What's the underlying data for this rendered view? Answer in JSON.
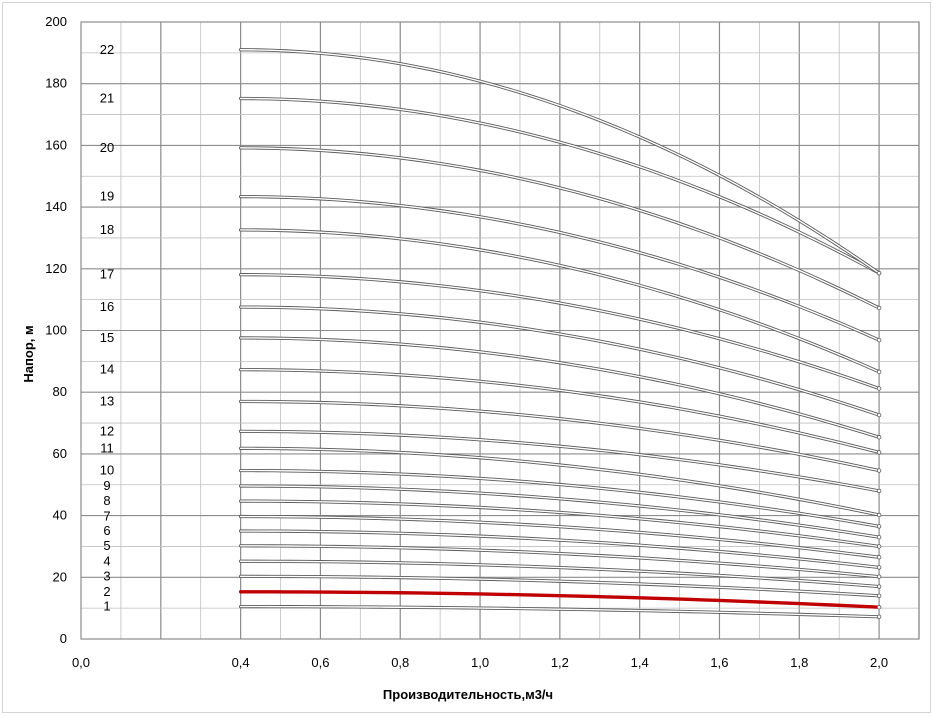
{
  "chart_data": {
    "type": "line",
    "title": "",
    "xlabel": "Производительность,м3/ч",
    "ylabel": "Напор, м",
    "xlim": [
      0,
      2.1
    ],
    "ylim": [
      0,
      200
    ],
    "grid": true,
    "legend": "none",
    "x_ticks": [
      "0,0",
      "0,4",
      "0,6",
      "0,8",
      "1,0",
      "1,2",
      "1,4",
      "1,6",
      "1,8",
      "2,0"
    ],
    "x_tick_values": [
      0.0,
      0.4,
      0.6,
      0.8,
      1.0,
      1.2,
      1.4,
      1.6,
      1.8,
      2.0
    ],
    "y_ticks": [
      "0",
      "20",
      "40",
      "60",
      "80",
      "100",
      "120",
      "140",
      "160",
      "180",
      "200"
    ],
    "y_tick_values": [
      0,
      20,
      40,
      60,
      80,
      100,
      120,
      140,
      160,
      180,
      200
    ],
    "x": [
      0.4,
      2.0
    ],
    "series": [
      {
        "name": "1",
        "values": [
          10.5,
          7.2
        ]
      },
      {
        "name": "2",
        "values": [
          15.3,
          10.3
        ],
        "highlight": true
      },
      {
        "name": "3",
        "values": [
          20.3,
          14.0
        ]
      },
      {
        "name": "4",
        "values": [
          25.2,
          17.0
        ]
      },
      {
        "name": "5",
        "values": [
          30.2,
          20.2
        ]
      },
      {
        "name": "6",
        "values": [
          35.0,
          23.2
        ]
      },
      {
        "name": "7",
        "values": [
          39.7,
          26.5
        ]
      },
      {
        "name": "8",
        "values": [
          44.7,
          30.0
        ]
      },
      {
        "name": "9",
        "values": [
          49.6,
          33.0
        ]
      },
      {
        "name": "10",
        "values": [
          54.6,
          36.5
        ]
      },
      {
        "name": "11",
        "values": [
          61.8,
          40.2
        ]
      },
      {
        "name": "12",
        "values": [
          67.3,
          48.0
        ]
      },
      {
        "name": "13",
        "values": [
          77.0,
          54.6
        ]
      },
      {
        "name": "14",
        "values": [
          87.3,
          60.5
        ]
      },
      {
        "name": "15",
        "values": [
          97.6,
          65.4
        ]
      },
      {
        "name": "16",
        "values": [
          107.6,
          72.6
        ]
      },
      {
        "name": "17",
        "values": [
          118.1,
          81.2
        ]
      },
      {
        "name": "18",
        "values": [
          132.6,
          86.6
        ]
      },
      {
        "name": "19",
        "values": [
          143.4,
          96.9
        ]
      },
      {
        "name": "20",
        "values": [
          159.2,
          107.3
        ]
      },
      {
        "name": "21",
        "values": [
          175.2,
          118.6
        ]
      },
      {
        "name": "22",
        "values": [
          191.0,
          118.6
        ]
      }
    ],
    "colors": {
      "curve": "#d0d0d0",
      "curve_edge": "#5a5a5a",
      "highlight": "#c00000",
      "grid": "#bfbfbf",
      "grid_major": "#8c8c8c"
    }
  }
}
